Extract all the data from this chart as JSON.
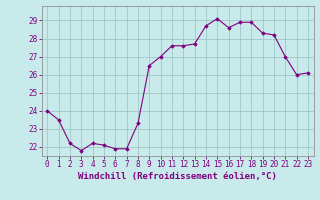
{
  "hours": [
    0,
    1,
    2,
    3,
    4,
    5,
    6,
    7,
    8,
    9,
    10,
    11,
    12,
    13,
    14,
    15,
    16,
    17,
    18,
    19,
    20,
    21,
    22,
    23
  ],
  "windchill": [
    24.0,
    23.5,
    22.2,
    21.8,
    22.2,
    22.1,
    21.9,
    21.9,
    23.3,
    26.5,
    27.0,
    27.6,
    27.6,
    27.7,
    28.7,
    29.1,
    28.6,
    28.9,
    28.9,
    28.3,
    28.2,
    27.0,
    26.0,
    26.1
  ],
  "line_color": "#800080",
  "bg_color": "#c8eaea",
  "grid_color": "#a0c8c8",
  "text_color": "#800080",
  "xlabel": "Windchill (Refroidissement éolien,°C)",
  "ylim": [
    21.5,
    29.8
  ],
  "yticks": [
    22,
    23,
    24,
    25,
    26,
    27,
    28,
    29
  ],
  "xticks": [
    0,
    1,
    2,
    3,
    4,
    5,
    6,
    7,
    8,
    9,
    10,
    11,
    12,
    13,
    14,
    15,
    16,
    17,
    18,
    19,
    20,
    21,
    22,
    23
  ],
  "axis_fontsize": 5.5,
  "label_fontsize": 6.5
}
